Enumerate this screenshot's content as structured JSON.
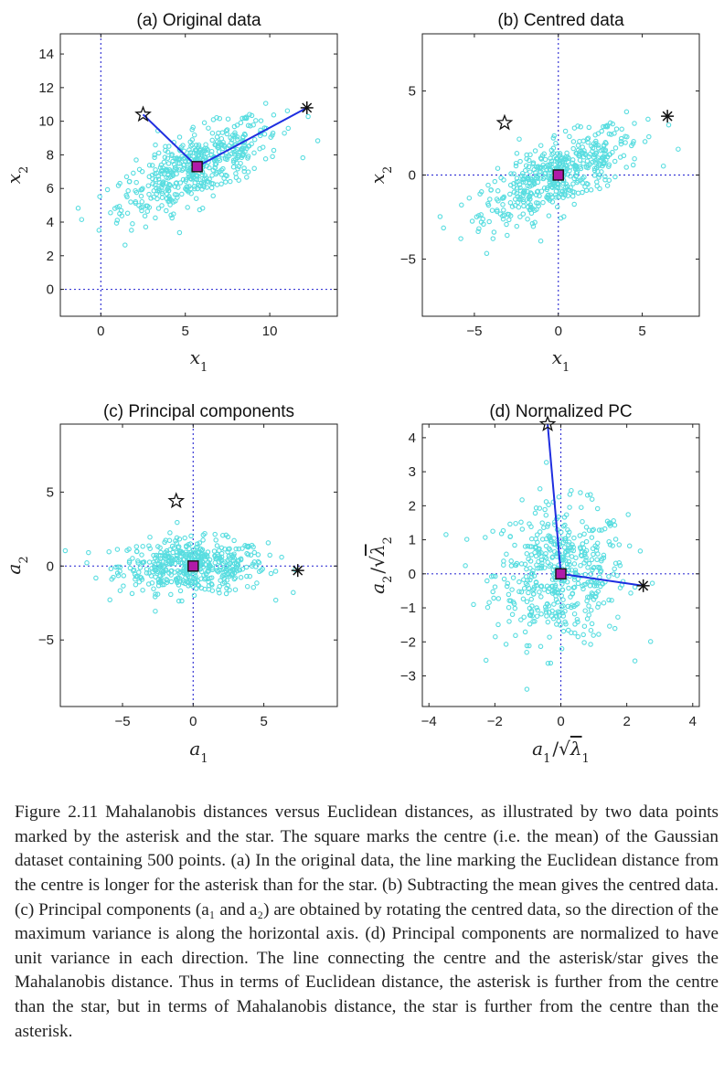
{
  "colors": {
    "points": "#58dde0",
    "line": "#1f2ee0",
    "ref": "#3a3ad6",
    "square": "#b01aa8"
  },
  "chart_data": [
    {
      "id": "a",
      "type": "scatter",
      "title": "(a)  Original data",
      "xlabel": "x",
      "xlabel_sub": "1",
      "ylabel": "x",
      "ylabel_sub": "2",
      "xlim": [
        -2.4,
        14
      ],
      "ylim": [
        -1.6,
        15.2
      ],
      "xticks": [
        0,
        5,
        10
      ],
      "yticks": [
        0,
        2,
        4,
        6,
        8,
        10,
        12,
        14
      ],
      "ref_x": 0,
      "ref_y": 0,
      "centre": [
        5.7,
        7.3
      ],
      "star": [
        2.5,
        10.4
      ],
      "asterisk": [
        12.2,
        10.8
      ],
      "connect": [
        "star",
        "asterisk"
      ]
    },
    {
      "id": "b",
      "type": "scatter",
      "title": "(b)  Centred data",
      "xlabel": "x",
      "xlabel_sub": "1",
      "ylabel": "x",
      "ylabel_sub": "2",
      "xlim": [
        -8.1,
        8.4
      ],
      "ylim": [
        -8.4,
        8.4
      ],
      "xticks": [
        -5,
        0,
        5
      ],
      "yticks": [
        -5,
        0,
        5
      ],
      "ref_x": 0,
      "ref_y": 0,
      "centre": [
        0,
        0
      ],
      "star": [
        -3.2,
        3.1
      ],
      "asterisk": [
        6.5,
        3.5
      ],
      "connect": []
    },
    {
      "id": "c",
      "type": "scatter",
      "title": "(c)  Principal components",
      "xlabel": "a",
      "xlabel_sub": "1",
      "ylabel": "a",
      "ylabel_sub": "2",
      "xlim": [
        -9.4,
        10.2
      ],
      "ylim": [
        -9.5,
        9.6
      ],
      "xticks": [
        -5,
        0,
        5
      ],
      "yticks": [
        -5,
        0,
        5
      ],
      "ref_x": 0,
      "ref_y": 0,
      "centre": [
        0,
        0
      ],
      "star": [
        -1.2,
        4.4
      ],
      "asterisk": [
        7.4,
        -0.3
      ],
      "connect": []
    },
    {
      "id": "d",
      "type": "scatter",
      "title": "(d)  Normalized PC",
      "xlabel": "a",
      "xlabel_sub": "1",
      "xlabel_sqrt": "λ",
      "xlabel_sqrt_sub": "1",
      "ylabel": "a",
      "ylabel_sub": "2",
      "ylabel_sqrt": "λ",
      "ylabel_sqrt_sub": "2",
      "xlim": [
        -4.2,
        4.2
      ],
      "ylim": [
        -3.9,
        4.4
      ],
      "xticks": [
        -4,
        -2,
        0,
        2,
        4
      ],
      "yticks": [
        -3,
        -2,
        -1,
        0,
        1,
        2,
        3,
        4
      ],
      "ref_x": 0,
      "ref_y": 0,
      "centre": [
        0,
        0
      ],
      "star": [
        -0.4,
        4.4
      ],
      "asterisk": [
        2.5,
        -0.35
      ],
      "connect": [
        "star",
        "asterisk"
      ]
    }
  ],
  "caption": "Figure 2.11 Mahalanobis distances versus Euclidean distances, as illustrated by two data points marked by the asterisk and the star. The square marks the centre (i.e. the mean) of the Gaussian dataset containing 500 points. (a) In the original data, the line marking the Euclidean distance from the centre is longer for the asterisk than for the star. (b) Subtracting the mean gives the centred data. (c) Principal components (a₁ and a₂) are obtained by rotating the centred data, so the direction of the maximum variance is along the horizontal axis. (d) Principal components are normalized to have unit variance in each direction. The line connecting the centre and the asterisk/star gives the Mahalanobis distance. Thus in terms of Euclidean distance, the asterisk is further from the centre than the star, but in terms of Mahalanobis distance, the star is further from the centre than the asterisk."
}
